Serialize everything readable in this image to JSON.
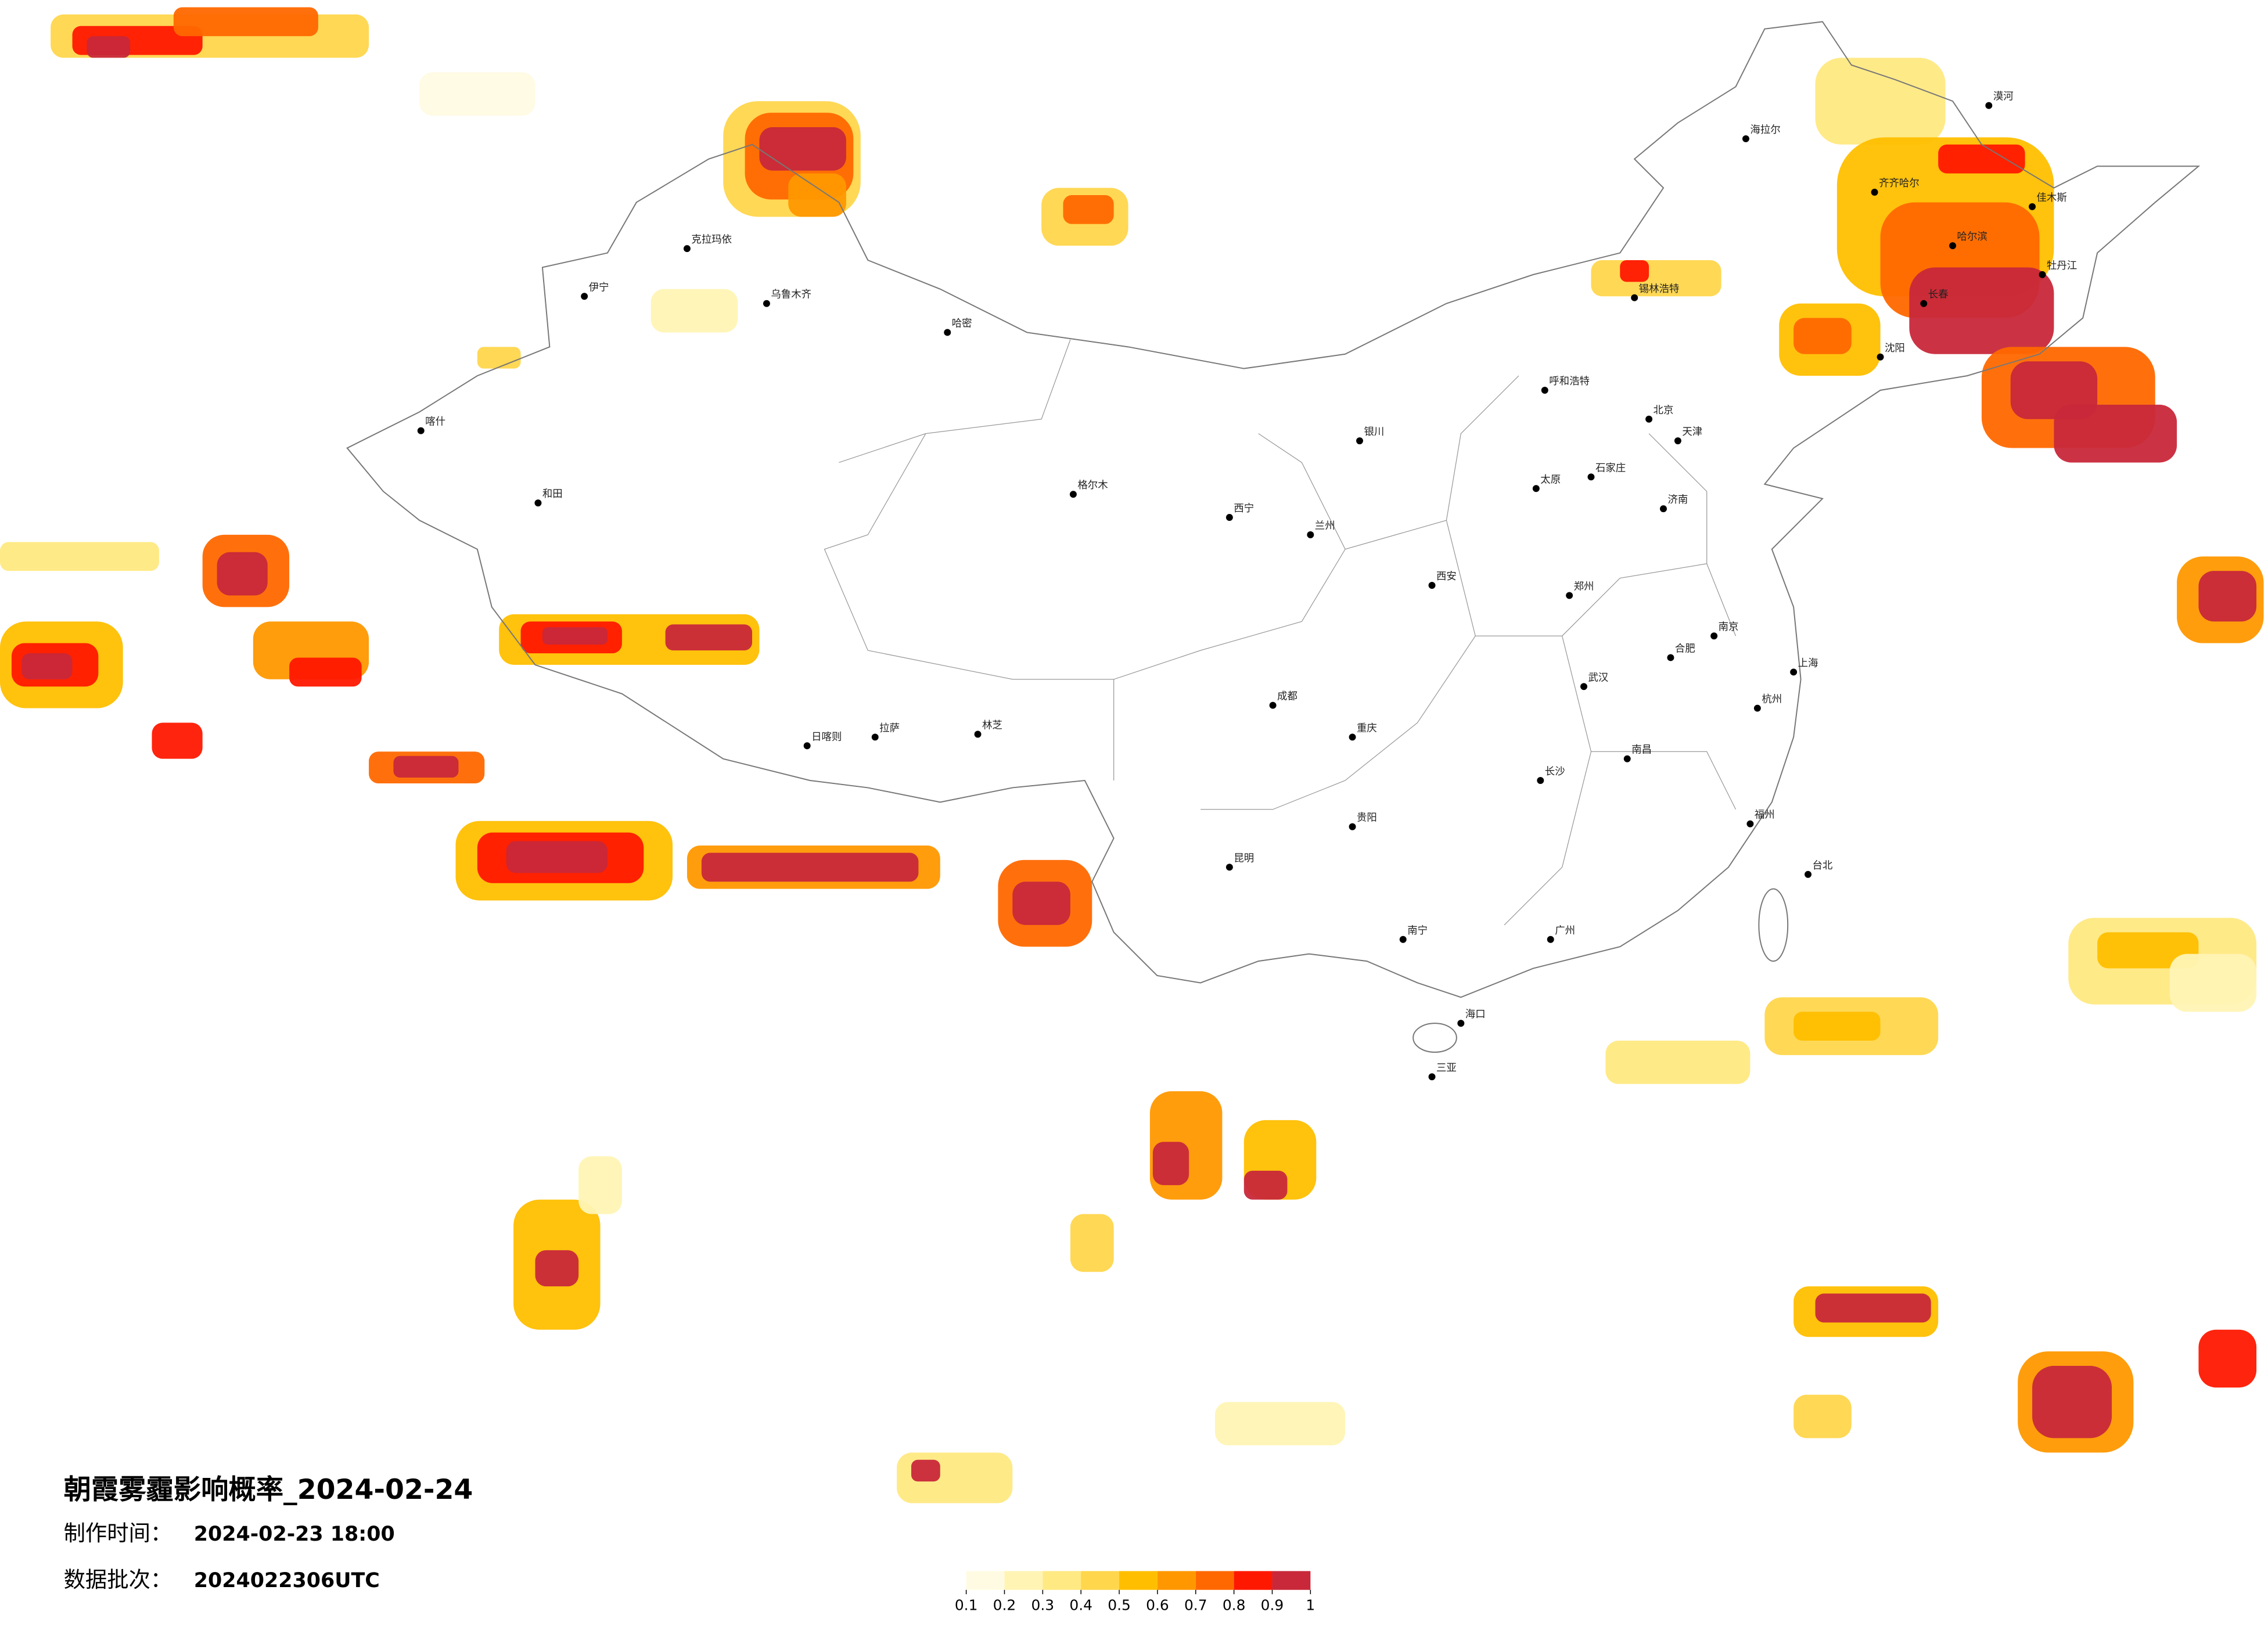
{
  "title": "朝霞雾霾影响概率_2024-02-24",
  "production_time": {
    "label": "制作时间：",
    "value": "2024-02-23 18:00"
  },
  "data_batch": {
    "label": "数据批次：",
    "value": "2024022306UTC"
  },
  "colorbar": {
    "ticks": [
      0.1,
      0.2,
      0.3,
      0.4,
      0.5,
      0.6,
      0.7,
      0.8,
      0.9,
      1
    ],
    "colors": [
      "#fffbe3",
      "#fff4b4",
      "#ffe982",
      "#ffd64c",
      "#ffbf00",
      "#ff9800",
      "#ff6800",
      "#ff1800",
      "#c8283a"
    ]
  },
  "cities": [
    "漠河",
    "海拉尔",
    "齐齐哈尔",
    "佳木斯",
    "哈尔滨",
    "牡丹江",
    "长春",
    "沈阳",
    "锡林浩特",
    "呼和浩特",
    "北京",
    "天津",
    "石家庄",
    "太原",
    "济南",
    "郑州",
    "西安",
    "兰州",
    "西宁",
    "银川",
    "乌鲁木齐",
    "克拉玛依",
    "伊宁",
    "喀什",
    "和田",
    "哈密",
    "格尔木",
    "拉萨",
    "日喀则",
    "林芝",
    "成都",
    "重庆",
    "贵阳",
    "昆明",
    "南宁",
    "广州",
    "长沙",
    "武汉",
    "南昌",
    "合肥",
    "南京",
    "上海",
    "杭州",
    "福州",
    "台北",
    "海口",
    "三亚"
  ]
}
